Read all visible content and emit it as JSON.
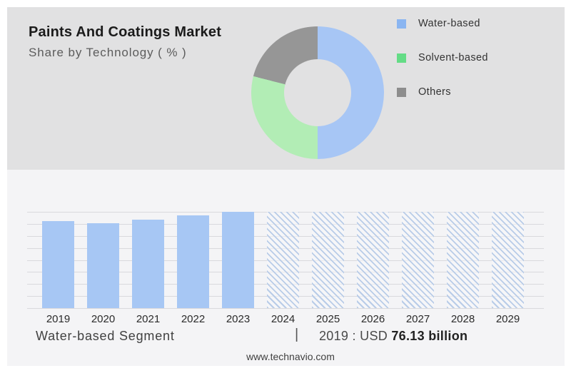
{
  "header": {
    "title": "Paints And Coatings Market",
    "subtitle": "Share by Technology ( % )"
  },
  "chart_data": [
    {
      "type": "donut",
      "title": "Paints And Coatings Market",
      "subtitle": "Share by Technology ( % )",
      "labels": [
        "Water-based",
        "Solvent-based",
        "Others"
      ],
      "values": [
        50,
        29,
        21
      ],
      "slice_colors": [
        "#a7c6f5",
        "#b2edb5",
        "#969696"
      ],
      "legend_colors": [
        "#8ab5f1",
        "#64dc86",
        "#8d8d8d"
      ],
      "legend_position": "right",
      "hole_ratio": 0.5
    },
    {
      "type": "bar",
      "title": "",
      "xlabel": "",
      "ylabel": "",
      "x": [
        2019,
        2020,
        2021,
        2022,
        2023,
        2024,
        2025,
        2026,
        2027,
        2028,
        2029
      ],
      "relative_heights": [
        90,
        88,
        92,
        96,
        100,
        100,
        100,
        100,
        100,
        100,
        100
      ],
      "historical_years": [
        2019,
        2020,
        2021,
        2022,
        2023
      ],
      "forecast_years": [
        2024,
        2025,
        2026,
        2027,
        2028,
        2029
      ],
      "forecast_start": 2024,
      "y_axis_labels": false,
      "gridline_count": 9,
      "series_name": "Water-based Segment",
      "annotation": "2019 : USD 76.13 billion"
    }
  ],
  "footer": {
    "segment_label": "Water-based Segment",
    "divider": "|",
    "value_prefix": "2019 : USD ",
    "value_bold": "76.13 billion"
  },
  "site": {
    "url_label": "www.technavio.com"
  },
  "colors": {
    "page_bg": "#ffffff",
    "top_panel_bg": "#e1e1e2",
    "bottom_panel_bg": "#f4f4f6",
    "gridline": "#d9d9dd",
    "axis_line": "#c9c9cd",
    "bar_solid": "#a7c7f4",
    "hatch_line": "#b9cce8",
    "hatch_bg": "#f7f8fa",
    "title_text": "#1b1b1b",
    "subtitle_text": "#5c5c5c"
  }
}
